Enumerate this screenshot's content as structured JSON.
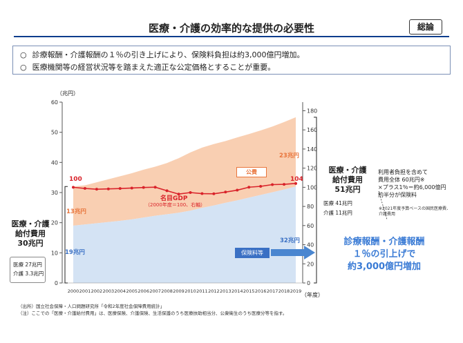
{
  "header": {
    "title": "医療・介護の効率的な提供の必要性",
    "badge": "総論"
  },
  "bullets": [
    "診療報酬・介護報酬の１％の引き上げにより、保険料負担は約3,000億円増加。",
    "医療機関等の経営状況等を踏まえた適正な公定価格とすることが重要。"
  ],
  "bullet_mark": "○",
  "colors": {
    "title_rule": "#0b3c8c",
    "public_area": "#f9cfb2",
    "premium_area": "#d4e3f4",
    "gdp_line": "#d9232a",
    "callout": "#3a7bd5",
    "arrow": "#4a86d0",
    "orange_label": "#e8743b",
    "blue_label": "#3a70c4"
  },
  "chart_data": {
    "type": "area",
    "x": [
      2000,
      2001,
      2002,
      2003,
      2004,
      2005,
      2006,
      2007,
      2008,
      2009,
      2010,
      2011,
      2012,
      2013,
      2014,
      2015,
      2016,
      2017,
      2018,
      2019
    ],
    "x_tick_labels": [
      "2000",
      "2001",
      "2002",
      "2003",
      "2004",
      "2005",
      "2006",
      "2007",
      "2008",
      "2009",
      "2010",
      "2011",
      "2012",
      "2013",
      "2014",
      "2015",
      "2016",
      "2017",
      "2018",
      "2019"
    ],
    "xlabel": "（年度）",
    "left_axis": {
      "label": "（兆円）",
      "ylim": [
        0,
        60
      ],
      "ticks": [
        0,
        10,
        20,
        30,
        40,
        50,
        60
      ]
    },
    "right_axis": {
      "ylim": [
        0,
        189
      ],
      "ticks": [
        0,
        20,
        40,
        60,
        80,
        100,
        120,
        140,
        160,
        180
      ]
    },
    "grid": false,
    "series": [
      {
        "name": "保険料等",
        "axis": "left",
        "values": [
          19,
          19.4,
          19.8,
          20.2,
          20.6,
          21.1,
          21.7,
          22.3,
          22.8,
          23.3,
          24,
          24.9,
          25.7,
          26.6,
          27.4,
          28.3,
          29.2,
          30.1,
          31,
          32
        ]
      },
      {
        "name": "公費",
        "axis": "left",
        "values": [
          13,
          13,
          13.6,
          14.2,
          14.8,
          15.3,
          15.9,
          16.3,
          17,
          18.1,
          19.3,
          20,
          20.4,
          20.5,
          20.9,
          21.1,
          21.4,
          21.8,
          22.4,
          23
        ]
      },
      {
        "name": "名目GDP",
        "axis": "right",
        "values": [
          100,
          98.8,
          98,
          98.3,
          98.7,
          99.2,
          99.8,
          100.1,
          96.4,
          92.9,
          94.5,
          93.4,
          93.2,
          95,
          97,
          100.1,
          101,
          102.8,
          103.1,
          104
        ]
      }
    ],
    "annotations": {
      "gdp_start": "100",
      "gdp_end": "104",
      "public_end": "23兆円",
      "public_start": "13兆円",
      "premium_start": "19兆円",
      "premium_end": "32兆円",
      "public_label": "公費",
      "premium_label": "保険料等",
      "gdp_name": "名目GDP",
      "gdp_note": "（2000年度＝100、右軸）"
    }
  },
  "left_summary": {
    "title_lines": [
      "医療・介護",
      "給付費用",
      "30兆円"
    ],
    "detail_lines": [
      "医療 27兆円",
      "介護 3.3兆円"
    ]
  },
  "right_summary": {
    "title_lines": [
      "医療・介護",
      "給付費用",
      "51兆円"
    ],
    "detail_lines": [
      "医療 41兆円",
      "介護 11兆円"
    ]
  },
  "cost_note": {
    "lines": [
      "利用者負担を含めて",
      "費用全体 60兆円※",
      "×プラス1％＝約6,000億円",
      "約半分が保険料"
    ],
    "footnote_lines": [
      "※2021年度予算ベースの国民医療費、",
      "介護費用"
    ]
  },
  "callout": {
    "lines": [
      "診療報酬・介護報酬",
      "１％の引上げで",
      "約3,000億円増加"
    ]
  },
  "footer": {
    "source": "（出所）国立社会保障・人口問題研究所「令和2年度社会保障費用統計」",
    "note": "（注）ここでの「医療・介護給付費用」は、医療保険、介護保険、生活保護のうち医療扶助相当分、公衆衛生のうち医療分等を指す。"
  }
}
